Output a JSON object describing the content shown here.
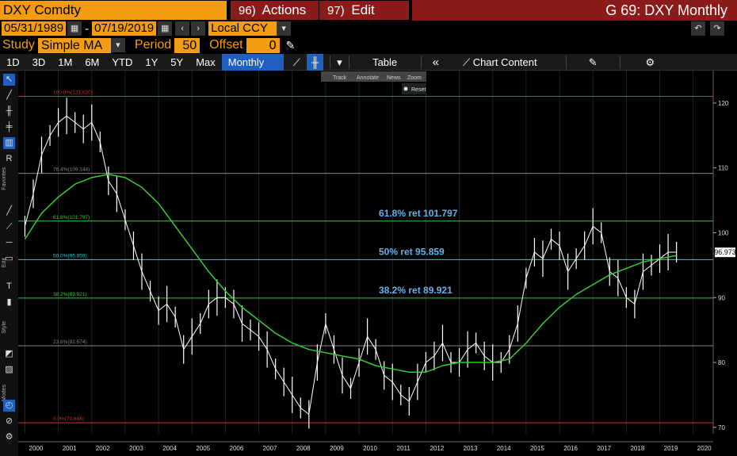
{
  "header": {
    "ticker": "DXY Comdty",
    "actions_num": "96)",
    "actions_label": "Actions",
    "edit_num": "97)",
    "edit_label": "Edit",
    "window_title": "G 69: DXY Monthly"
  },
  "dates": {
    "start": "05/31/1989",
    "sep": "-",
    "end": "07/19/2019",
    "currency": "Local CCY"
  },
  "study": {
    "label": "Study",
    "value": "Simple MA",
    "period_label": "Period",
    "period_value": "50",
    "offset_label": "Offset",
    "offset_value": "0"
  },
  "toolbar": {
    "ranges": [
      "1D",
      "3D",
      "1M",
      "6M",
      "YTD",
      "1Y",
      "5Y",
      "Max"
    ],
    "frequency": "Monthly",
    "table_label": "Table",
    "chart_content_label": "Chart Content"
  },
  "mini_toolbar": {
    "track": "Track",
    "annotate": "Annotate",
    "news": "News",
    "zoom": "Zoom",
    "reset": "Reset"
  },
  "sidebar": {
    "favorites_label": "Favorites",
    "edit_label": "Edit",
    "style_label": "Style",
    "modes_label": "Modes"
  },
  "colors": {
    "price": "#ffffff",
    "ma": "#33cc33",
    "fib_red": "#cc3333",
    "fib_gray": "#888888",
    "fib_green": "#33cc33",
    "fib_cyan": "#33cccc",
    "annotation": "#6ab0e8",
    "background": "#000000",
    "last_price_tag": "#ffffff"
  },
  "chart_data": {
    "type": "line",
    "title": "",
    "ylim": [
      69,
      125
    ],
    "x_ticks": [
      "2000",
      "2001",
      "2002",
      "2003",
      "2004",
      "2005",
      "2006",
      "2007",
      "2008",
      "2009",
      "2010",
      "2011",
      "2012",
      "2013",
      "2014",
      "2015",
      "2016",
      "2017",
      "2018",
      "2019",
      "2020"
    ],
    "y_ticks": [
      70,
      80,
      90,
      100,
      110,
      120
    ],
    "last_price": "96.973",
    "last_price_value": 96.973,
    "fib_levels": [
      {
        "label": "100.0%(121.020)",
        "value": 121.02,
        "color": "red"
      },
      {
        "label": "76.4%(109.144)",
        "value": 109.144,
        "color": "gray"
      },
      {
        "label": "61.8%(101.797)",
        "value": 101.797,
        "color": "green"
      },
      {
        "label": "50.0%(95.859)",
        "value": 95.859,
        "color": "cyan"
      },
      {
        "label": "38.2%(89.921)",
        "value": 89.921,
        "color": "green"
      },
      {
        "label": "23.6%(82.574)",
        "value": 82.574,
        "color": "gray"
      },
      {
        "label": "0.0%(70.698)",
        "value": 70.698,
        "color": "red"
      }
    ],
    "annotations": [
      {
        "text": "61.8% ret 101.797",
        "value": 101.797
      },
      {
        "text": "50% ret 95.859",
        "value": 95.859
      },
      {
        "text": "38.2% ret 89.921",
        "value": 89.921
      }
    ],
    "series": [
      {
        "x": [
          2000.0,
          2000.25,
          2000.5,
          2000.75,
          2001.0,
          2001.25,
          2001.5,
          2001.75,
          2002.0,
          2002.25,
          2002.5,
          2002.75,
          2003.0,
          2003.25,
          2003.5,
          2003.75,
          2004.0,
          2004.25,
          2004.5,
          2004.75,
          2005.0,
          2005.25,
          2005.5,
          2005.75,
          2006.0,
          2006.25,
          2006.5,
          2006.75,
          2007.0,
          2007.25,
          2007.5,
          2007.75,
          2008.0,
          2008.25,
          2008.5,
          2008.75,
          2009.0,
          2009.25,
          2009.5,
          2009.75,
          2010.0,
          2010.25,
          2010.5,
          2010.75,
          2011.0,
          2011.25,
          2011.5,
          2011.75,
          2012.0,
          2012.25,
          2012.5,
          2012.75,
          2013.0,
          2013.25,
          2013.5,
          2013.75,
          2014.0,
          2014.25,
          2014.5,
          2014.75,
          2015.0,
          2015.25,
          2015.5,
          2015.75,
          2016.0,
          2016.25,
          2016.5,
          2016.75,
          2017.0,
          2017.25,
          2017.5,
          2017.75,
          2018.0,
          2018.25,
          2018.5,
          2018.75,
          2019.0,
          2019.25,
          2019.5
        ],
        "y": [
          101,
          106,
          112,
          115,
          117,
          118,
          117,
          116,
          117,
          114,
          108,
          106,
          102,
          98,
          94,
          91,
          88,
          89,
          87,
          82,
          84,
          86,
          89,
          90,
          90,
          89,
          86,
          85,
          84,
          82,
          79,
          77,
          75,
          73,
          72,
          80,
          86,
          82,
          78,
          76,
          80,
          84,
          82,
          78,
          77,
          75,
          74,
          77,
          80,
          81,
          83,
          80,
          80,
          82,
          83,
          81,
          80,
          80,
          82,
          86,
          93,
          97,
          96,
          99,
          98,
          94,
          96,
          98,
          101,
          100,
          94,
          93,
          90,
          89,
          94,
          95,
          96,
          97,
          97
        ],
        "name": ""
      },
      {
        "x": [
          2000.0,
          2000.5,
          2001.0,
          2001.5,
          2002.0,
          2002.5,
          2003.0,
          2003.5,
          2004.0,
          2004.5,
          2005.0,
          2005.5,
          2006.0,
          2006.5,
          2007.0,
          2007.5,
          2008.0,
          2008.5,
          2009.0,
          2009.5,
          2010.0,
          2010.5,
          2011.0,
          2011.5,
          2012.0,
          2012.5,
          2013.0,
          2013.5,
          2014.0,
          2014.5,
          2015.0,
          2015.5,
          2016.0,
          2016.5,
          2017.0,
          2017.5,
          2018.0,
          2018.5,
          2019.0,
          2019.5
        ],
        "y": [
          99,
          103,
          105.5,
          107.5,
          108.5,
          109,
          108.5,
          107,
          104.5,
          101,
          97.5,
          94,
          91,
          88.5,
          86.5,
          84.5,
          83,
          82,
          81.5,
          81,
          80.5,
          79.5,
          79,
          78.5,
          78.5,
          79.5,
          80,
          80,
          80,
          80.5,
          83,
          86,
          88.5,
          90.5,
          92,
          93.5,
          94.5,
          95.5,
          96,
          96.5
        ],
        "name": ""
      }
    ],
    "x_range": [
      1999.8,
      2020.6
    ],
    "grid": true
  }
}
